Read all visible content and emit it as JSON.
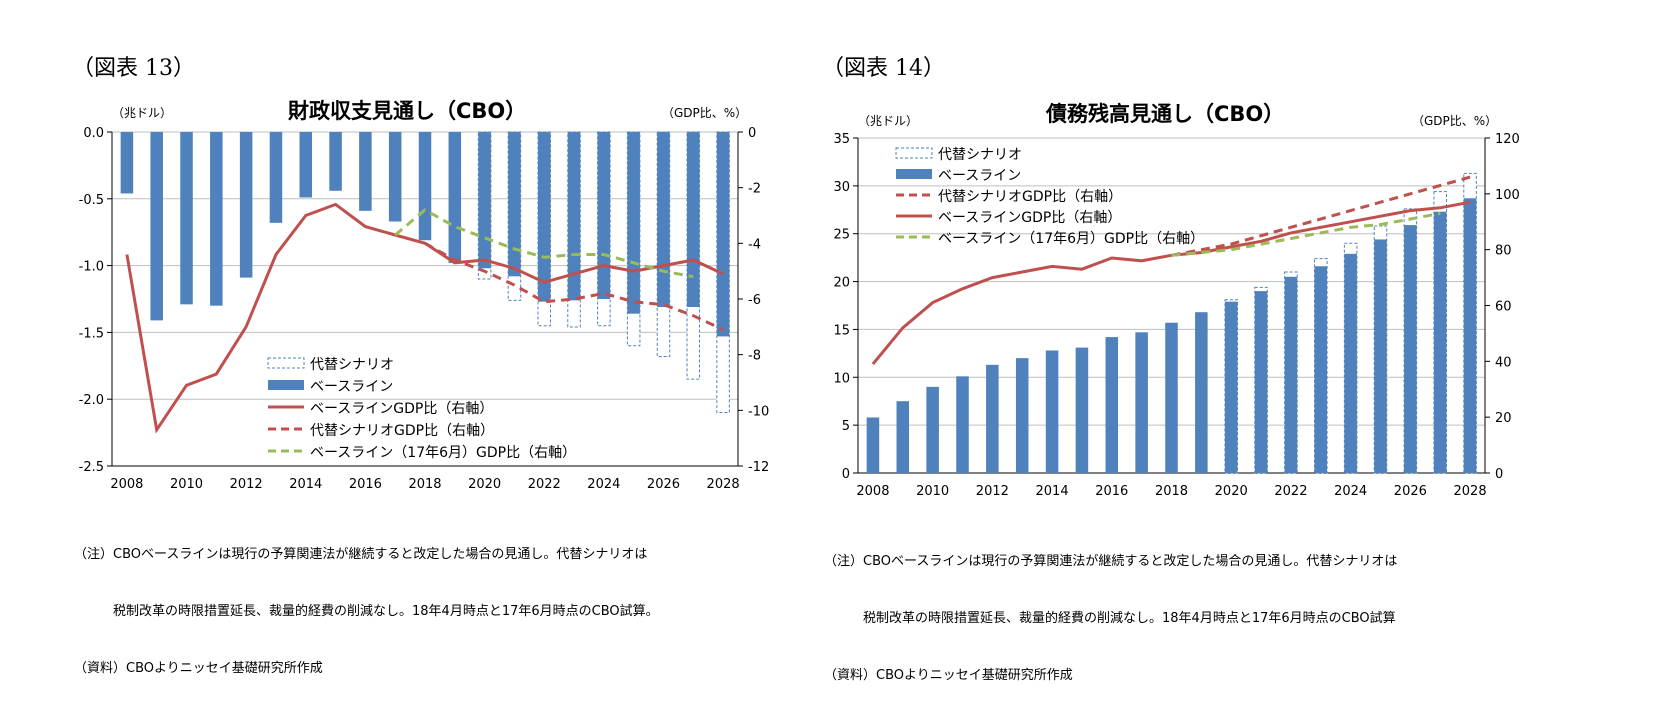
{
  "left": {
    "fig_label": "（図表 13）",
    "unit_left": "（兆ドル）",
    "unit_right": "（GDP比、%）",
    "note_lines": [
      "（注）CBOベースラインは現行の予算関連法が継続すると改定した場合の見通し。代替シナリオは",
      "　　　税制改革の時限措置延長、裁量的経費の削減なし。18年4月時点と17年6月時点のCBO試算。",
      "（資料）CBOよりニッセイ基礎研究所作成"
    ]
  },
  "right": {
    "fig_label": "（図表 14）",
    "unit_left": "（兆ドル）",
    "unit_right": "（GDP比、%）",
    "note_lines": [
      "（注）CBOベースラインは現行の予算関連法が継続すると改定した場合の見通し。代替シナリオは",
      "　　　税制改革の時限措置延長、裁量的経費の削減なし。18年4月時点と17年6月時点のCBO試算",
      "（資料）CBOよりニッセイ基礎研究所作成"
    ]
  },
  "colors": {
    "bar": "#4f81bd",
    "bar_alt": "#4f81bd",
    "red": "#c0504d",
    "green": "#9bbb59"
  },
  "chart_data": [
    {
      "type": "bar",
      "title": "財政収支見通し（CBO）",
      "x": [
        2008,
        2009,
        2010,
        2011,
        2012,
        2013,
        2014,
        2015,
        2016,
        2017,
        2018,
        2019,
        2020,
        2021,
        2022,
        2023,
        2024,
        2025,
        2026,
        2027,
        2028
      ],
      "x_tick_labels": [
        "2008",
        "2010",
        "2012",
        "2014",
        "2016",
        "2018",
        "2020",
        "2022",
        "2024",
        "2026",
        "2028"
      ],
      "y_left": {
        "min": -2.5,
        "max": 0.0,
        "ticks": [
          "0.0",
          "-0.5",
          "-1.0",
          "-1.5",
          "-2.0",
          "-2.5"
        ]
      },
      "y_right": {
        "min": -12,
        "max": 0,
        "ticks": [
          "0",
          "-2",
          "-4",
          "-6",
          "-8",
          "-10",
          "-12"
        ]
      },
      "legend": [
        "代替シナリオ",
        "ベースライン",
        "ベースラインGDP比（右軸）",
        "代替シナリオGDP比（右軸）",
        "ベースライン（17年6月）GDP比（右軸）"
      ],
      "series": [
        {
          "name": "ベースライン",
          "kind": "bar",
          "axis": "left",
          "x": [
            2008,
            2009,
            2010,
            2011,
            2012,
            2013,
            2014,
            2015,
            2016,
            2017,
            2018,
            2019,
            2020,
            2021,
            2022,
            2023,
            2024,
            2025,
            2026,
            2027,
            2028
          ],
          "values": [
            -0.46,
            -1.41,
            -1.29,
            -1.3,
            -1.09,
            -0.68,
            -0.49,
            -0.44,
            -0.59,
            -0.67,
            -0.81,
            -0.98,
            -1.02,
            -1.08,
            -1.27,
            -1.26,
            -1.25,
            -1.36,
            -1.31,
            -1.31,
            -1.53
          ]
        },
        {
          "name": "代替シナリオ",
          "kind": "bar-outline",
          "axis": "left",
          "x": [
            2020,
            2021,
            2022,
            2023,
            2024,
            2025,
            2026,
            2027,
            2028
          ],
          "values": [
            -1.1,
            -1.26,
            -1.45,
            -1.46,
            -1.45,
            -1.6,
            -1.68,
            -1.85,
            -2.1
          ]
        },
        {
          "name": "ベースラインGDP比（右軸）",
          "kind": "line",
          "axis": "right",
          "x": [
            2008,
            2009,
            2010,
            2011,
            2012,
            2013,
            2014,
            2015,
            2016,
            2017,
            2018,
            2019,
            2020,
            2021,
            2022,
            2023,
            2024,
            2025,
            2026,
            2027,
            2028
          ],
          "values": [
            -4.4,
            -10.7,
            -9.1,
            -8.7,
            -7.0,
            -4.4,
            -3.0,
            -2.6,
            -3.4,
            -3.7,
            -4.0,
            -4.7,
            -4.6,
            -4.9,
            -5.4,
            -5.1,
            -4.8,
            -5.0,
            -4.8,
            -4.6,
            -5.1
          ]
        },
        {
          "name": "代替シナリオGDP比（右軸）",
          "kind": "dashed-line",
          "axis": "right",
          "x": [
            2018,
            2019,
            2020,
            2021,
            2022,
            2023,
            2024,
            2025,
            2026,
            2027,
            2028
          ],
          "values": [
            -4.0,
            -4.6,
            -5.0,
            -5.5,
            -6.1,
            -6.0,
            -5.8,
            -6.1,
            -6.2,
            -6.6,
            -7.1
          ]
        },
        {
          "name": "ベースライン（17年6月）GDP比（右軸）",
          "kind": "dashed-line",
          "axis": "right",
          "x": [
            2017,
            2018,
            2019,
            2020,
            2021,
            2022,
            2023,
            2024,
            2025,
            2026,
            2027
          ],
          "values": [
            -3.7,
            -2.8,
            -3.4,
            -3.8,
            -4.2,
            -4.5,
            -4.4,
            -4.4,
            -4.7,
            -5.0,
            -5.2
          ]
        }
      ]
    },
    {
      "type": "bar",
      "title": "債務残高見通し（CBO）",
      "x": [
        2008,
        2009,
        2010,
        2011,
        2012,
        2013,
        2014,
        2015,
        2016,
        2017,
        2018,
        2019,
        2020,
        2021,
        2022,
        2023,
        2024,
        2025,
        2026,
        2027,
        2028
      ],
      "x_tick_labels": [
        "2008",
        "2010",
        "2012",
        "2014",
        "2016",
        "2018",
        "2020",
        "2022",
        "2024",
        "2026",
        "2028"
      ],
      "y_left": {
        "min": 0,
        "max": 35,
        "ticks": [
          "35",
          "30",
          "25",
          "20",
          "15",
          "10",
          "5",
          "0"
        ]
      },
      "y_right": {
        "min": 0,
        "max": 120,
        "ticks": [
          "120",
          "100",
          "80",
          "60",
          "40",
          "20",
          "0"
        ]
      },
      "legend": [
        "代替シナリオ",
        "ベースライン",
        "代替シナリオGDP比（右軸）",
        "ベースラインGDP比（右軸）",
        "ベースライン（17年6月）GDP比（右軸）"
      ],
      "series": [
        {
          "name": "ベースライン",
          "kind": "bar",
          "axis": "left",
          "x": [
            2008,
            2009,
            2010,
            2011,
            2012,
            2013,
            2014,
            2015,
            2016,
            2017,
            2018,
            2019,
            2020,
            2021,
            2022,
            2023,
            2024,
            2025,
            2026,
            2027,
            2028
          ],
          "values": [
            5.8,
            7.5,
            9.0,
            10.1,
            11.3,
            12.0,
            12.8,
            13.1,
            14.2,
            14.7,
            15.7,
            16.8,
            17.9,
            19.0,
            20.5,
            21.6,
            22.9,
            24.4,
            25.9,
            27.3,
            28.7
          ]
        },
        {
          "name": "代替シナリオ",
          "kind": "bar-outline",
          "axis": "left",
          "x": [
            2020,
            2021,
            2022,
            2023,
            2024,
            2025,
            2026,
            2027,
            2028
          ],
          "values": [
            18.1,
            19.4,
            21.0,
            22.4,
            24.0,
            25.8,
            27.6,
            29.4,
            31.3
          ]
        },
        {
          "name": "代替シナリオGDP比（右軸）",
          "kind": "dashed-line",
          "axis": "right",
          "x": [
            2018,
            2019,
            2020,
            2021,
            2022,
            2023,
            2024,
            2025,
            2026,
            2027,
            2028
          ],
          "values": [
            78,
            80,
            82,
            85,
            88,
            91,
            94,
            97,
            100,
            103,
            106
          ]
        },
        {
          "name": "ベースラインGDP比（右軸）",
          "kind": "line",
          "axis": "right",
          "x": [
            2008,
            2009,
            2010,
            2011,
            2012,
            2013,
            2014,
            2015,
            2016,
            2017,
            2018,
            2019,
            2020,
            2021,
            2022,
            2023,
            2024,
            2025,
            2026,
            2027,
            2028
          ],
          "values": [
            39,
            52,
            61,
            66,
            70,
            72,
            74,
            73,
            77,
            76,
            78,
            79,
            81,
            83,
            86,
            88,
            90,
            92,
            94,
            95,
            97
          ]
        },
        {
          "name": "ベースライン（17年6月）GDP比（右軸）",
          "kind": "dashed-line",
          "axis": "right",
          "x": [
            2018,
            2019,
            2020,
            2021,
            2022,
            2023,
            2024,
            2025,
            2026,
            2027
          ],
          "values": [
            78,
            79,
            80,
            82,
            84,
            86,
            88,
            89,
            91,
            93
          ]
        }
      ]
    }
  ]
}
